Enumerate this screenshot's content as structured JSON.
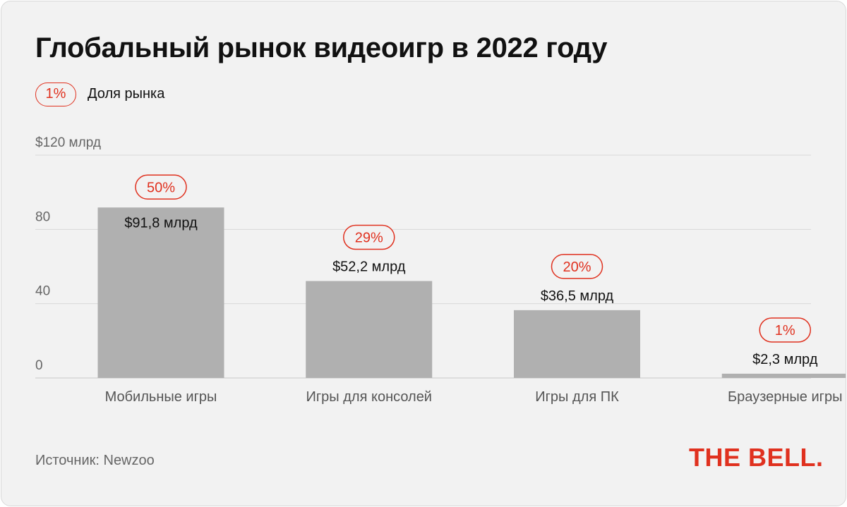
{
  "title": "Глобальный рынок видеоигр в 2022 году",
  "legend": {
    "sample": "1%",
    "label": "Доля рынка"
  },
  "source": "Источник: Newzoo",
  "logo": "THE BELL.",
  "colors": {
    "bar": "#b0b0b0",
    "accent": "#e0311f",
    "grid": "#d8d8d8",
    "background": "#f2f2f2"
  },
  "chart_data": {
    "type": "bar",
    "categories": [
      "Мобильные игры",
      "Игры для консолей",
      "Игры для ПК",
      "Браузерные игры"
    ],
    "values": [
      91.8,
      52.2,
      36.5,
      2.3
    ],
    "value_labels": [
      "$91,8 млрд",
      "$52,2 млрд",
      "$36,5 млрд",
      "$2,3 млрд"
    ],
    "shares": [
      "50%",
      "29%",
      "20%",
      "1%"
    ],
    "y_ticks": [
      {
        "value": 0,
        "label": "0"
      },
      {
        "value": 40,
        "label": "40"
      },
      {
        "value": 80,
        "label": "80"
      },
      {
        "value": 120,
        "label": "$120 млрд"
      }
    ],
    "ylim": [
      0,
      120
    ],
    "grid": true
  }
}
